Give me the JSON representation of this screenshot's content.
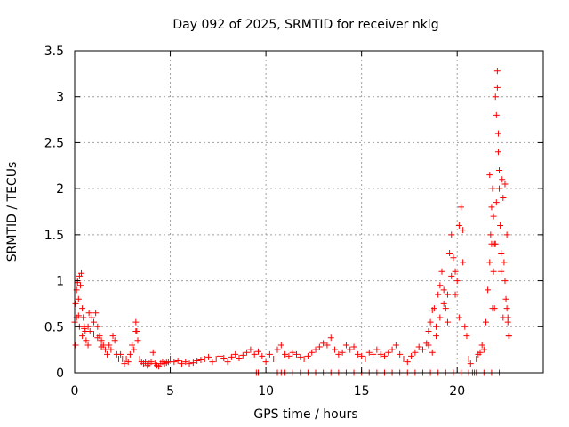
{
  "chart_data": {
    "type": "scatter",
    "title": "Day 092 of 2025, SRMTID for receiver nklg",
    "xlabel": "GPS time / hours",
    "ylabel": "SRMTID / TECUs",
    "xlim": [
      0,
      24.5
    ],
    "ylim": [
      0,
      3.5
    ],
    "x_ticks": [
      0,
      5,
      10,
      15,
      20
    ],
    "x_tick_labels": [
      "0",
      "5",
      "10",
      "15",
      "20"
    ],
    "y_ticks": [
      0,
      0.5,
      1,
      1.5,
      2,
      2.5,
      3,
      3.5
    ],
    "y_tick_labels": [
      "0",
      "0.5",
      "1",
      "1.5",
      "2",
      "2.5",
      "3",
      "3.5"
    ],
    "grid": true,
    "marker": "plus",
    "series": [
      {
        "name": "SRMTID",
        "color": "#ff0000",
        "x": [
          0.0,
          0.05,
          0.1,
          0.15,
          0.2,
          0.25,
          0.3,
          0.35,
          0.4,
          0.45,
          0.5,
          0.55,
          0.6,
          0.7,
          0.8,
          0.9,
          1.0,
          1.1,
          1.2,
          1.3,
          1.4,
          1.5,
          1.6,
          1.7,
          1.8,
          1.9,
          2.0,
          2.1,
          2.2,
          2.3,
          2.4,
          2.5,
          2.6,
          2.7,
          2.8,
          2.9,
          3.0,
          3.1,
          3.2,
          3.3,
          3.4,
          3.5,
          3.6,
          3.7,
          3.8,
          3.9,
          4.0,
          4.1,
          4.2,
          4.3,
          4.4,
          4.5,
          4.6,
          4.7,
          4.8,
          4.9,
          5.0,
          5.2,
          5.4,
          5.6,
          5.8,
          6.0,
          6.2,
          6.4,
          6.6,
          6.8,
          7.0,
          7.2,
          7.4,
          7.6,
          7.8,
          8.0,
          8.2,
          8.4,
          8.6,
          8.8,
          9.0,
          9.2,
          9.4,
          9.6,
          9.8,
          10.0,
          10.2,
          10.4,
          10.6,
          10.8,
          11.0,
          11.2,
          11.4,
          11.6,
          11.8,
          12.0,
          12.2,
          12.4,
          12.6,
          12.8,
          13.0,
          13.2,
          13.4,
          13.6,
          13.8,
          14.0,
          14.2,
          14.4,
          14.6,
          14.8,
          15.0,
          15.2,
          15.4,
          15.6,
          15.8,
          16.0,
          16.2,
          16.4,
          16.6,
          16.8,
          17.0,
          17.2,
          17.4,
          17.6,
          17.8,
          18.0,
          18.2,
          18.4,
          18.5,
          18.6,
          18.7,
          18.8,
          18.9,
          19.0,
          19.1,
          19.2,
          19.3,
          19.4,
          19.5,
          19.6,
          19.7,
          19.8,
          19.9,
          20.0,
          20.1,
          20.2,
          20.3,
          20.4,
          20.5,
          20.6,
          20.7,
          20.8,
          20.9,
          21.0,
          21.1,
          21.2,
          21.3,
          21.4,
          21.5,
          21.6,
          21.7,
          21.75,
          21.8,
          21.85,
          21.9,
          21.95,
          22.0,
          22.05,
          22.1,
          22.15,
          22.2,
          22.25,
          22.3,
          22.35,
          22.4,
          22.45,
          22.5,
          22.55,
          22.6,
          22.65,
          22.7,
          0.05,
          0.1,
          0.15,
          0.2,
          0.25,
          0.4,
          0.5,
          1.0,
          1.2,
          1.4,
          3.2,
          3.25,
          18.5,
          18.7,
          18.9,
          19.1,
          19.3,
          19.5,
          19.7,
          19.9,
          20.1,
          20.3,
          21.7,
          21.8,
          21.85,
          21.9,
          21.95,
          22.0,
          22.05,
          22.1,
          22.15,
          22.2,
          22.3,
          22.4,
          22.5,
          22.6,
          22.65,
          22.7,
          0.7,
          0.75,
          9.5,
          9.6,
          10.6,
          10.8,
          11.0,
          11.4,
          11.8,
          12.2,
          12.6,
          13.0,
          13.4,
          13.8,
          14.2,
          14.6,
          15.0,
          15.4,
          15.8,
          16.2,
          16.6,
          17.0,
          17.4,
          17.8,
          18.2,
          18.6,
          19.0,
          19.4,
          19.8,
          20.2,
          20.6,
          21.0,
          21.4,
          21.8,
          22.2
        ],
        "y": [
          0.55,
          0.75,
          0.9,
          1.0,
          0.8,
          1.05,
          0.95,
          1.08,
          0.7,
          0.6,
          0.5,
          0.45,
          0.35,
          0.3,
          0.45,
          0.6,
          0.55,
          0.65,
          0.5,
          0.4,
          0.35,
          0.3,
          0.25,
          0.2,
          0.3,
          0.25,
          0.4,
          0.35,
          0.2,
          0.15,
          0.2,
          0.15,
          0.1,
          0.15,
          0.12,
          0.2,
          0.3,
          0.25,
          0.45,
          0.35,
          0.15,
          0.12,
          0.1,
          0.12,
          0.08,
          0.1,
          0.12,
          0.22,
          0.1,
          0.08,
          0.07,
          0.1,
          0.12,
          0.1,
          0.11,
          0.12,
          0.15,
          0.12,
          0.13,
          0.1,
          0.12,
          0.1,
          0.11,
          0.13,
          0.14,
          0.15,
          0.17,
          0.12,
          0.15,
          0.18,
          0.16,
          0.12,
          0.17,
          0.2,
          0.16,
          0.19,
          0.22,
          0.25,
          0.2,
          0.23,
          0.18,
          0.12,
          0.2,
          0.15,
          0.25,
          0.3,
          0.2,
          0.18,
          0.22,
          0.2,
          0.17,
          0.15,
          0.18,
          0.22,
          0.25,
          0.28,
          0.32,
          0.3,
          0.38,
          0.25,
          0.2,
          0.22,
          0.3,
          0.25,
          0.28,
          0.2,
          0.18,
          0.15,
          0.22,
          0.2,
          0.25,
          0.2,
          0.18,
          0.22,
          0.25,
          0.3,
          0.2,
          0.15,
          0.12,
          0.18,
          0.22,
          0.28,
          0.25,
          0.32,
          0.45,
          0.55,
          0.68,
          0.7,
          0.5,
          0.85,
          0.95,
          1.1,
          0.9,
          0.7,
          0.85,
          1.3,
          1.5,
          1.25,
          1.1,
          1.0,
          0.6,
          1.8,
          1.55,
          0.5,
          0.4,
          0.15,
          0.1,
          0.0,
          0.0,
          0.15,
          0.2,
          0.22,
          0.3,
          0.25,
          0.55,
          0.9,
          1.2,
          1.5,
          1.8,
          2.0,
          1.7,
          1.4,
          3.0,
          2.8,
          3.28,
          2.4,
          2.0,
          1.6,
          1.3,
          2.1,
          1.9,
          1.2,
          1.0,
          0.8,
          0.7,
          0.55,
          0.4,
          0.3,
          0.6,
          0.98,
          0.62,
          0.5,
          0.4,
          0.48,
          0.42,
          0.38,
          0.28,
          0.55,
          0.45,
          0.3,
          0.22,
          0.4,
          0.6,
          0.75,
          0.55,
          1.05,
          0.85,
          1.6,
          1.2,
          2.15,
          1.4,
          0.7,
          1.1,
          0.7,
          1.4,
          1.85,
          3.1,
          2.6,
          2.2,
          1.1,
          0.6,
          2.05,
          1.5,
          0.6,
          0.4,
          0.5,
          0.65,
          0.0,
          0.0,
          0.0,
          0.0,
          0.0,
          0.0,
          0.0,
          0.0,
          0.0,
          0.0,
          0.0,
          0.0,
          0.0,
          0.0,
          0.0,
          0.0,
          0.0,
          0.0,
          0.0,
          0.0,
          0.0,
          0.0,
          0.0,
          0.0,
          0.0,
          0.0,
          0.0,
          0.0,
          0.0,
          0.0,
          0.0,
          0.0,
          0.0
        ]
      }
    ]
  }
}
